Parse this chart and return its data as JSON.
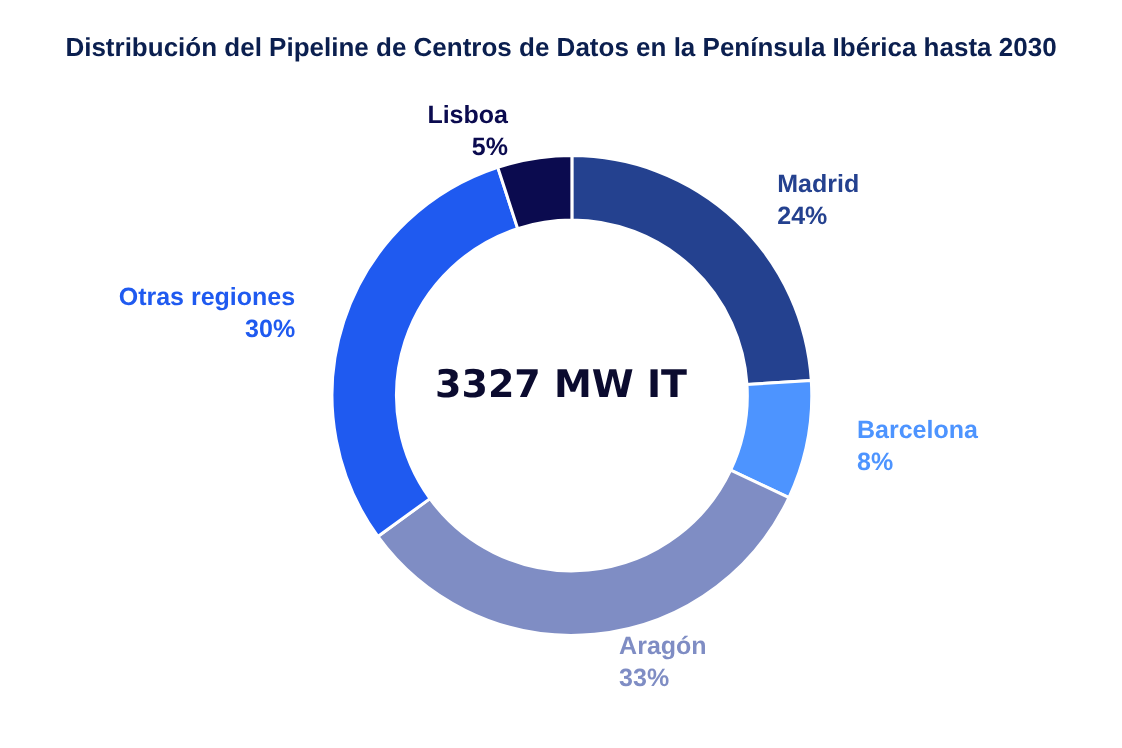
{
  "chart_data": {
    "type": "donut",
    "title": "Distribución del Pipeline de Centros de Datos en la Península Ibérica hasta 2030",
    "categories": [
      "Madrid",
      "Barcelona",
      "Aragón",
      "Otras regiones",
      "Lisboa"
    ],
    "values": [
      24,
      8,
      33,
      30,
      5
    ],
    "value_labels": [
      "24%",
      "8%",
      "33%",
      "30%",
      "5%"
    ],
    "colors": [
      "#24418f",
      "#4d94ff",
      "#7f8dc4",
      "#1f5af0",
      "#0b0b4f"
    ],
    "annotations": [
      "3327 MW IT"
    ],
    "legend": false
  }
}
